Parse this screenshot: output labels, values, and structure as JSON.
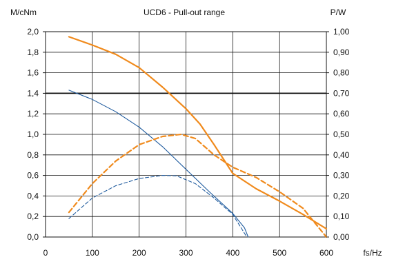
{
  "chart_data": {
    "type": "line",
    "title": "UCD6 - Pull-out range",
    "xlabel": "fs/Hz",
    "ylabel_left": "M/cNm",
    "ylabel_right": "P/W",
    "xlim": [
      0,
      600
    ],
    "ylim_left": [
      0,
      2.0
    ],
    "ylim_right": [
      0,
      1.0
    ],
    "x_ticks": [
      "0",
      "100",
      "200",
      "300",
      "400",
      "500",
      "600"
    ],
    "y_left_ticks": [
      "0,0",
      "0,2",
      "0,4",
      "0,6",
      "0,8",
      "1,0",
      "1,2",
      "1,4",
      "1,6",
      "1,8",
      "2,0"
    ],
    "y_right_ticks": [
      "0,00",
      "0,10",
      "0,20",
      "0,30",
      "0,40",
      "0,50",
      "0,60",
      "0,70",
      "0,80",
      "0,90",
      "1,00"
    ],
    "grid": true,
    "highlight_line_left": 1.4,
    "colors": {
      "orange": "#f08a1c",
      "blue": "#1f5b9e",
      "grid": "#111111",
      "axis": "#111111"
    },
    "series": [
      {
        "axis": "left",
        "color": "#f08a1c",
        "dash": false,
        "points": [
          [
            50,
            1.95
          ],
          [
            100,
            1.87
          ],
          [
            150,
            1.78
          ],
          [
            200,
            1.65
          ],
          [
            250,
            1.46
          ],
          [
            300,
            1.25
          ],
          [
            330,
            1.1
          ],
          [
            360,
            0.9
          ],
          [
            400,
            0.62
          ],
          [
            450,
            0.47
          ],
          [
            500,
            0.35
          ],
          [
            550,
            0.22
          ],
          [
            600,
            0.08
          ]
        ]
      },
      {
        "axis": "left",
        "color": "#1f5b9e",
        "dash": false,
        "points": [
          [
            50,
            1.43
          ],
          [
            100,
            1.34
          ],
          [
            150,
            1.22
          ],
          [
            200,
            1.07
          ],
          [
            250,
            0.88
          ],
          [
            300,
            0.66
          ],
          [
            350,
            0.44
          ],
          [
            400,
            0.23
          ],
          [
            425,
            0.09
          ],
          [
            433,
            0.0
          ]
        ]
      },
      {
        "axis": "right",
        "color": "#f08a1c",
        "dash": true,
        "points": [
          [
            50,
            0.12
          ],
          [
            100,
            0.26
          ],
          [
            150,
            0.37
          ],
          [
            200,
            0.45
          ],
          [
            250,
            0.49
          ],
          [
            290,
            0.5
          ],
          [
            320,
            0.48
          ],
          [
            360,
            0.4
          ],
          [
            400,
            0.34
          ],
          [
            450,
            0.29
          ],
          [
            500,
            0.22
          ],
          [
            550,
            0.14
          ],
          [
            600,
            0.0
          ]
        ]
      },
      {
        "axis": "right",
        "color": "#1f5b9e",
        "dash": true,
        "points": [
          [
            50,
            0.09
          ],
          [
            100,
            0.19
          ],
          [
            150,
            0.25
          ],
          [
            200,
            0.285
          ],
          [
            250,
            0.3
          ],
          [
            280,
            0.298
          ],
          [
            320,
            0.26
          ],
          [
            360,
            0.19
          ],
          [
            400,
            0.11
          ],
          [
            430,
            0.0
          ]
        ]
      }
    ]
  }
}
